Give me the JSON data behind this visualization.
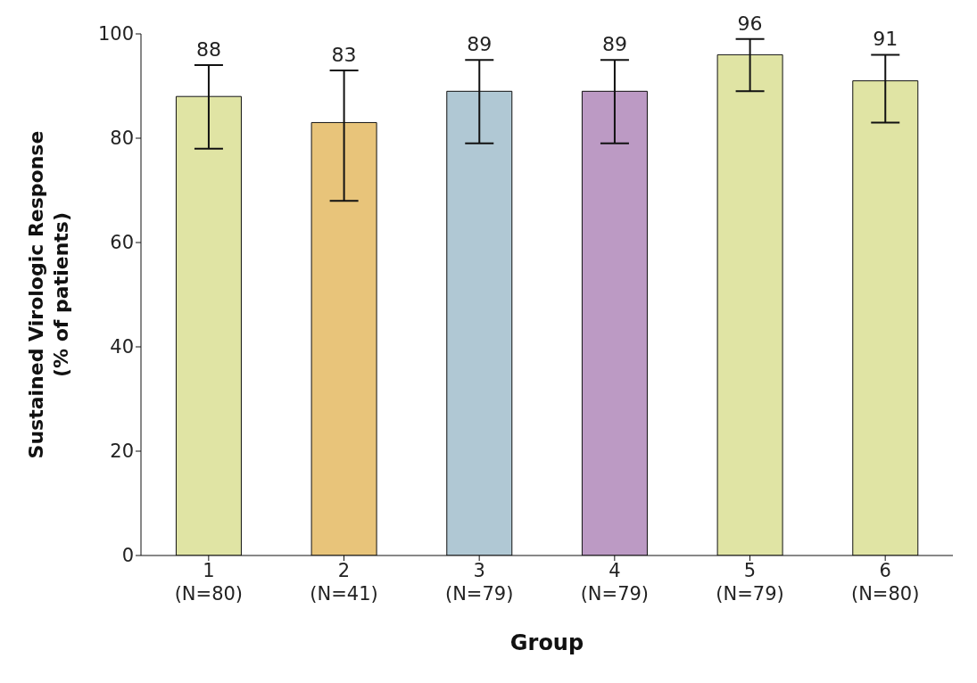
{
  "chart_data": {
    "type": "bar",
    "categories": [
      "1\n(N=80)",
      "2\n(N=41)",
      "3\n(N=79)",
      "4\n(N=79)",
      "5\n(N=79)",
      "6\n(N=80)"
    ],
    "values": [
      88,
      83,
      89,
      89,
      96,
      91
    ],
    "colors": [
      "#e0e4a4",
      "#e8c47a",
      "#b0c8d4",
      "#bc9ac4",
      "#e0e4a4",
      "#e0e4a4"
    ],
    "errors": [
      [
        78,
        94
      ],
      [
        68,
        93
      ],
      [
        79,
        95
      ],
      [
        79,
        95
      ],
      [
        89,
        99
      ],
      [
        83,
        96
      ]
    ],
    "data_labels": true,
    "xlabel": "Group",
    "ylabel": "Sustained Virologic Response\n(% of patients)",
    "ylim": [
      0,
      100
    ],
    "yticks": [
      0,
      20,
      40,
      60,
      80,
      100
    ],
    "grid": false,
    "legend": false
  }
}
